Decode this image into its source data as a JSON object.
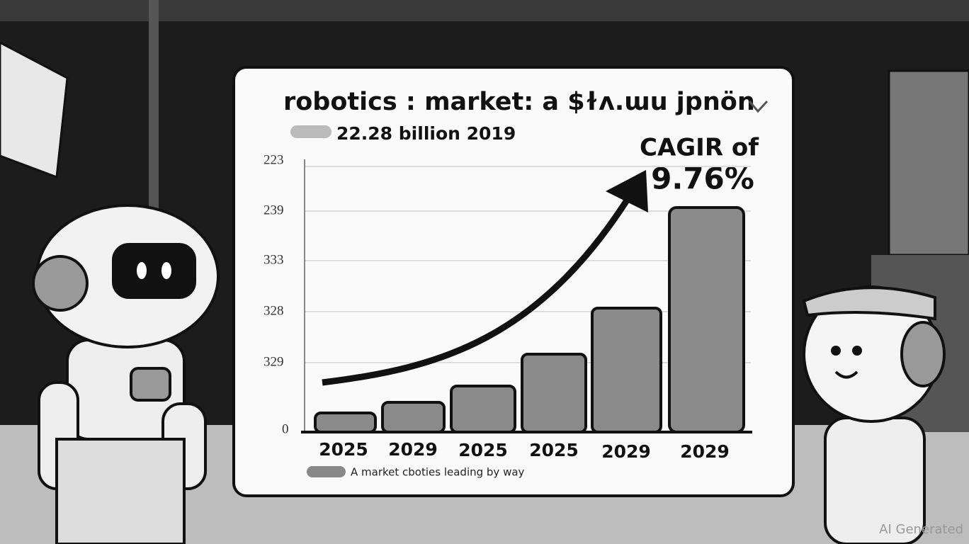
{
  "title": "robotics : market: a $ɫʌ.ɯu jpnön",
  "subtitle": "22.28 billion  2019",
  "annotation": {
    "line1": "CAGIR of",
    "line2": "9.76%"
  },
  "y_labels": [
    "223",
    "239",
    "333",
    "328",
    "329",
    "0"
  ],
  "x_labels": [
    "2025",
    "2029",
    "2025",
    "2025",
    "2029",
    "2029"
  ],
  "legend": "A market cboties leading by way",
  "watermark": "AI Generated"
}
